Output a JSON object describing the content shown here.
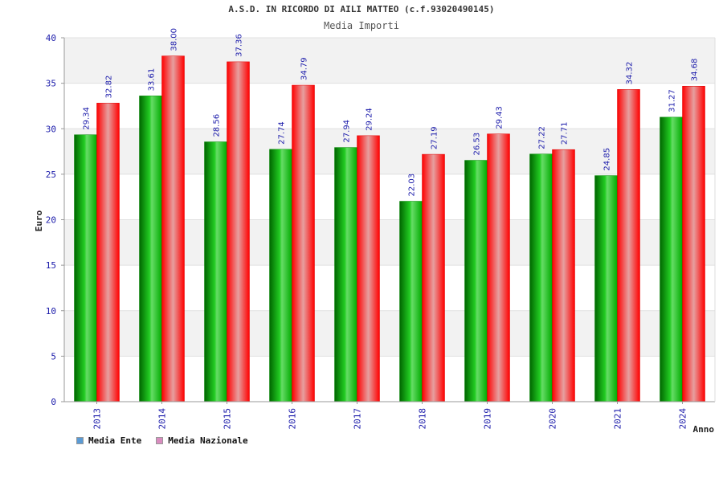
{
  "chart_data": {
    "type": "bar",
    "title": "A.S.D. IN RICORDO DI AILI MATTEO (c.f.93020490145)",
    "subtitle": "Media Importi",
    "ylabel": "Euro",
    "xlabel": "Anno",
    "ylim": [
      0,
      40
    ],
    "yticks": [
      0,
      5,
      10,
      15,
      20,
      25,
      30,
      35,
      40
    ],
    "categories": [
      "2013",
      "2014",
      "2015",
      "2016",
      "2017",
      "2018",
      "2019",
      "2020",
      "2021",
      "2024"
    ],
    "series": [
      {
        "name": "Media Ente",
        "color": "#00aa00",
        "legend_color": "#5b9bd5",
        "values": [
          29.34,
          33.61,
          28.56,
          27.74,
          27.94,
          22.03,
          26.53,
          27.22,
          24.85,
          31.27
        ]
      },
      {
        "name": "Media Nazionale",
        "color": "#ff0000",
        "legend_color": "#d98cbf",
        "values": [
          32.82,
          38.0,
          37.36,
          34.79,
          29.24,
          27.19,
          29.43,
          27.71,
          34.32,
          34.68
        ]
      }
    ],
    "value_labels": [
      [
        "29.34",
        "33.61",
        "28.56",
        "27.74",
        "27.94",
        "22.03",
        "26.53",
        "27.22",
        "24.85",
        "31.27"
      ],
      [
        "32.82",
        "38.00",
        "37.36",
        "34.79",
        "29.24",
        "27.19",
        "29.43",
        "27.71",
        "34.32",
        "34.68"
      ]
    ],
    "grid": true,
    "legend": "bottom-left"
  }
}
